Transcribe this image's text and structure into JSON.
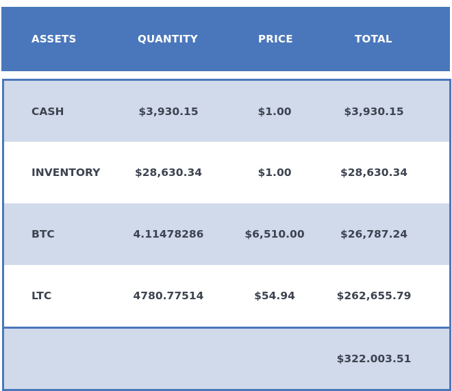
{
  "table": {
    "headers": [
      "ASSETS",
      "QUANTITY",
      "PRICE",
      "TOTAL"
    ],
    "rows": [
      {
        "asset": "CASH",
        "quantity": "$3,930.15",
        "price": "$1.00",
        "total": "$3,930.15"
      },
      {
        "asset": "INVENTORY",
        "quantity": "$28,630.34",
        "price": "$1.00",
        "total": "$28,630.34"
      },
      {
        "asset": "BTC",
        "quantity": "4.11478286",
        "price": "$6,510.00",
        "total": "$26,787.24"
      },
      {
        "asset": "LTC",
        "quantity": "4780.77514",
        "price": "$54.94",
        "total": "$262,655.79"
      }
    ],
    "grand_total": "$322.003.51"
  },
  "colors": {
    "header_bg": "#4a77bb",
    "row_shaded": "#d1daea",
    "text": "#3d4350"
  }
}
